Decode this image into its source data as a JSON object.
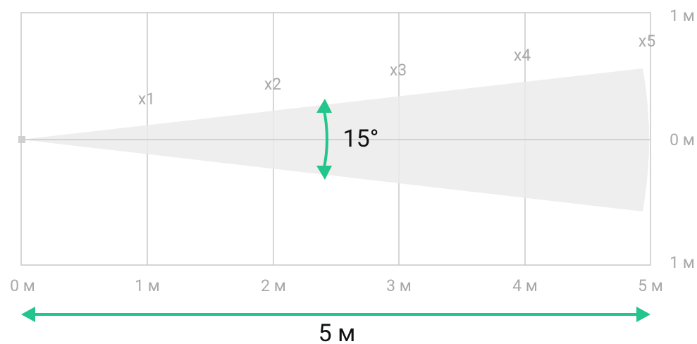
{
  "x_axis_labels": [
    "0 м",
    "1 м",
    "2 м",
    "3 м",
    "4 м",
    "5 м"
  ],
  "y_axis_labels": [
    "1 м",
    "0 м",
    "1 м"
  ],
  "zoom_labels": [
    "x1",
    "x2",
    "x3",
    "x4",
    "x5"
  ],
  "angle": "15°",
  "distance": "5 м"
}
